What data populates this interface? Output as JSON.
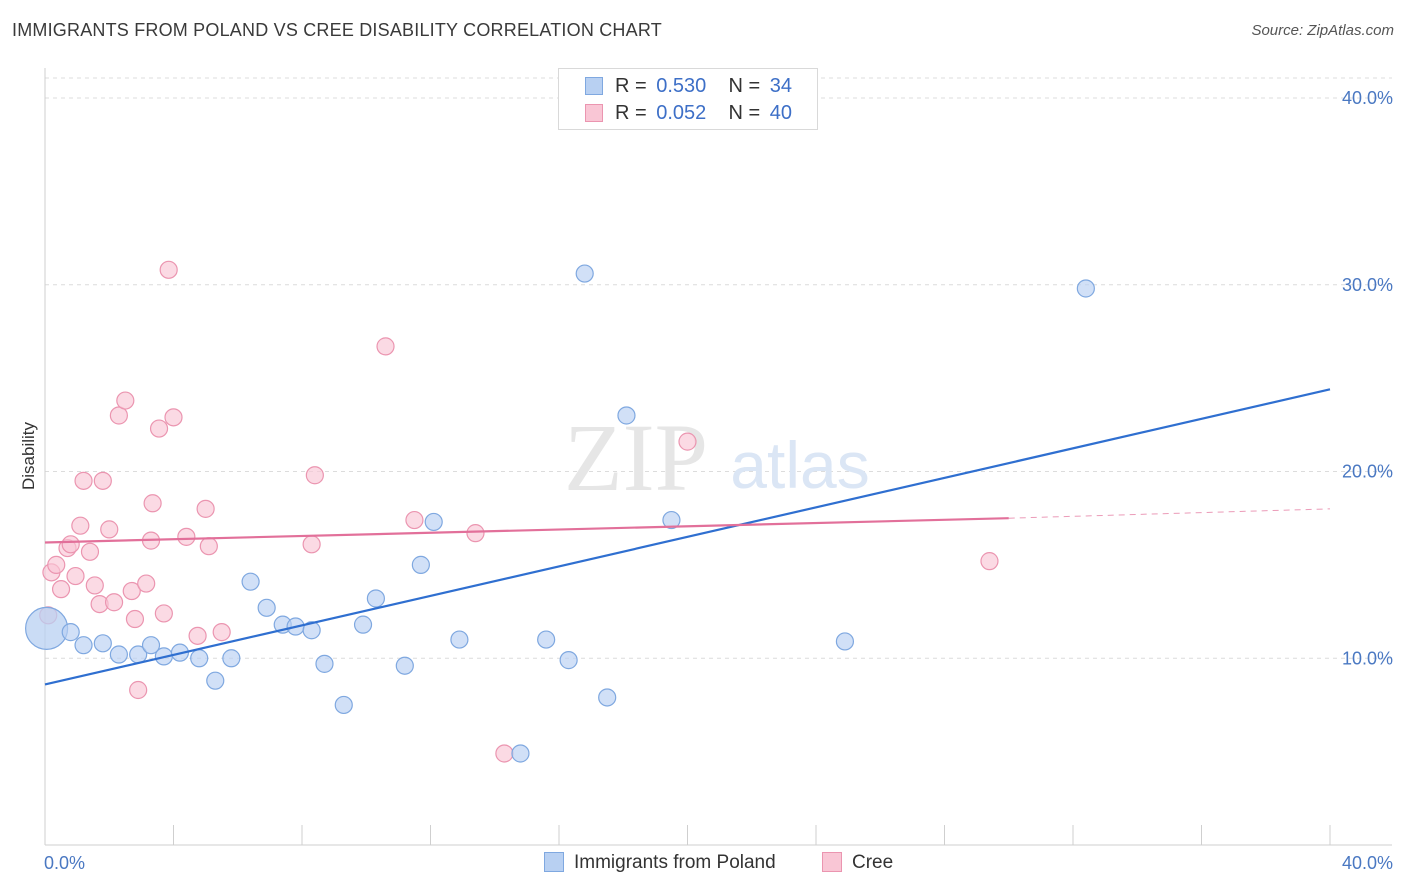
{
  "title": "IMMIGRANTS FROM POLAND VS CREE DISABILITY CORRELATION CHART",
  "source": "Source: ZipAtlas.com",
  "watermark": {
    "zip": "ZIP",
    "atlas": "atlas"
  },
  "legend": {
    "rows": [
      {
        "r_label": "R =",
        "r_value": "0.530",
        "n_label": "N =",
        "n_value": "34"
      },
      {
        "r_label": "R =",
        "r_value": "0.052",
        "n_label": "N =",
        "n_value": "40"
      }
    ]
  },
  "colors": {
    "poland_fill": "#b8d0f2",
    "poland_stroke": "#7fa8e0",
    "poland_line": "#2f6fd0",
    "cree_fill": "#f9c6d5",
    "cree_stroke": "#eb95b0",
    "cree_line": "#e2709a"
  },
  "chart_data": {
    "type": "scatter",
    "title": "IMMIGRANTS FROM POLAND VS CREE DISABILITY CORRELATION CHART",
    "xlabel": "",
    "ylabel": "Disability",
    "xlim": [
      0,
      40
    ],
    "ylim": [
      0,
      41.5
    ],
    "x_tick_labels": [
      "0.0%",
      "40.0%"
    ],
    "y_ticks": [
      10,
      20,
      30,
      40
    ],
    "y_tick_labels": [
      "10.0%",
      "20.0%",
      "30.0%",
      "40.0%"
    ],
    "series": [
      {
        "name": "Immigrants from Poland",
        "trend": {
          "x": [
            0,
            40
          ],
          "y": [
            8.6,
            24.4
          ]
        },
        "points": [
          {
            "x": 0.05,
            "y": 11.6,
            "big": true
          },
          {
            "x": 0.8,
            "y": 11.4
          },
          {
            "x": 1.2,
            "y": 10.7
          },
          {
            "x": 1.8,
            "y": 10.8
          },
          {
            "x": 2.3,
            "y": 10.2
          },
          {
            "x": 2.9,
            "y": 10.2
          },
          {
            "x": 3.3,
            "y": 10.7
          },
          {
            "x": 3.7,
            "y": 10.1
          },
          {
            "x": 4.2,
            "y": 10.3
          },
          {
            "x": 4.8,
            "y": 10.0
          },
          {
            "x": 5.3,
            "y": 8.8
          },
          {
            "x": 5.8,
            "y": 10.0
          },
          {
            "x": 6.4,
            "y": 14.1
          },
          {
            "x": 6.9,
            "y": 12.7
          },
          {
            "x": 7.4,
            "y": 11.8
          },
          {
            "x": 7.8,
            "y": 11.7
          },
          {
            "x": 8.3,
            "y": 11.5
          },
          {
            "x": 8.7,
            "y": 9.7
          },
          {
            "x": 9.3,
            "y": 7.5
          },
          {
            "x": 9.9,
            "y": 11.8
          },
          {
            "x": 10.3,
            "y": 13.2
          },
          {
            "x": 11.2,
            "y": 9.6
          },
          {
            "x": 11.7,
            "y": 15.0
          },
          {
            "x": 12.1,
            "y": 17.3
          },
          {
            "x": 12.9,
            "y": 11.0
          },
          {
            "x": 14.8,
            "y": 4.9
          },
          {
            "x": 15.6,
            "y": 11.0
          },
          {
            "x": 16.3,
            "y": 9.9
          },
          {
            "x": 16.8,
            "y": 30.6
          },
          {
            "x": 17.5,
            "y": 7.9
          },
          {
            "x": 18.1,
            "y": 23.0
          },
          {
            "x": 19.5,
            "y": 17.4
          },
          {
            "x": 24.9,
            "y": 10.9
          },
          {
            "x": 32.4,
            "y": 29.8
          }
        ]
      },
      {
        "name": "Cree",
        "trend": {
          "x": [
            0,
            30
          ],
          "y": [
            16.2,
            17.5
          ],
          "dashed_to": [
            40,
            18.0
          ]
        },
        "points": [
          {
            "x": 0.1,
            "y": 12.3
          },
          {
            "x": 0.2,
            "y": 14.6
          },
          {
            "x": 0.35,
            "y": 15.0
          },
          {
            "x": 0.5,
            "y": 13.7
          },
          {
            "x": 0.7,
            "y": 15.9
          },
          {
            "x": 0.8,
            "y": 16.1
          },
          {
            "x": 0.95,
            "y": 14.4
          },
          {
            "x": 1.1,
            "y": 17.1
          },
          {
            "x": 1.2,
            "y": 19.5
          },
          {
            "x": 1.4,
            "y": 15.7
          },
          {
            "x": 1.55,
            "y": 13.9
          },
          {
            "x": 1.7,
            "y": 12.9
          },
          {
            "x": 1.8,
            "y": 19.5
          },
          {
            "x": 2.0,
            "y": 16.9
          },
          {
            "x": 2.15,
            "y": 13.0
          },
          {
            "x": 2.3,
            "y": 23.0
          },
          {
            "x": 2.5,
            "y": 23.8
          },
          {
            "x": 2.7,
            "y": 13.6
          },
          {
            "x": 2.8,
            "y": 12.1
          },
          {
            "x": 2.9,
            "y": 8.3
          },
          {
            "x": 3.15,
            "y": 14.0
          },
          {
            "x": 3.3,
            "y": 16.3
          },
          {
            "x": 3.35,
            "y": 18.3
          },
          {
            "x": 3.55,
            "y": 22.3
          },
          {
            "x": 3.7,
            "y": 12.4
          },
          {
            "x": 3.85,
            "y": 30.8
          },
          {
            "x": 4.0,
            "y": 22.9
          },
          {
            "x": 4.4,
            "y": 16.5
          },
          {
            "x": 4.75,
            "y": 11.2
          },
          {
            "x": 5.0,
            "y": 18.0
          },
          {
            "x": 5.1,
            "y": 16.0
          },
          {
            "x": 5.5,
            "y": 11.4
          },
          {
            "x": 8.3,
            "y": 16.1
          },
          {
            "x": 8.4,
            "y": 19.8
          },
          {
            "x": 10.6,
            "y": 26.7
          },
          {
            "x": 11.5,
            "y": 17.4
          },
          {
            "x": 13.4,
            "y": 16.7
          },
          {
            "x": 14.3,
            "y": 4.9
          },
          {
            "x": 20.0,
            "y": 21.6
          },
          {
            "x": 29.4,
            "y": 15.2
          }
        ]
      }
    ],
    "legend_position": "top-center"
  }
}
